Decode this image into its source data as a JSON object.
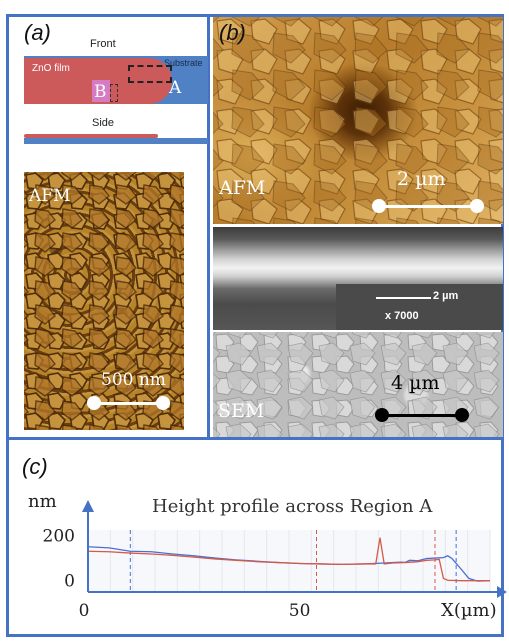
{
  "panel_a": {
    "label": "(a)",
    "schematic": {
      "front_label": "Front",
      "substrate_label": "Substrate",
      "film_label": "ZnO film",
      "region_b_label": "B",
      "region_a_label": "A",
      "side_label": "Side"
    },
    "afm": {
      "title": "AFM",
      "scalebar_label": "500 nm"
    }
  },
  "panel_b": {
    "label": "(b)",
    "afm": {
      "title": "AFM",
      "scalebar_label": "2 µm"
    },
    "sem_cross_section": {
      "scalebar_label": "2 µm",
      "magnification": "x 7000"
    },
    "sem": {
      "title": "SEM",
      "scalebar_label": "4 µm"
    }
  },
  "panel_c": {
    "label": "(c)",
    "chart_data": {
      "type": "line",
      "title": "Height profile across Region A",
      "ylabel": "nm",
      "xlabel": "X(µm)",
      "x_ticks": [
        "0",
        "50"
      ],
      "y_ticks": [
        "200",
        "0"
      ],
      "xlim": [
        0,
        95
      ],
      "ylim": [
        -50,
        330
      ],
      "series": [
        {
          "color": "#4a6fd4",
          "x": [
            0,
            5,
            10,
            15,
            20,
            25,
            30,
            35,
            40,
            45,
            50,
            55,
            60,
            65,
            70,
            72,
            74,
            75,
            76,
            78,
            80,
            82,
            84,
            85,
            86,
            88,
            90,
            92,
            95
          ],
          "y": [
            150,
            145,
            130,
            128,
            118,
            110,
            100,
            92,
            86,
            80,
            76,
            74,
            72,
            74,
            78,
            80,
            82,
            81,
            90,
            88,
            98,
            100,
            102,
            110,
            98,
            55,
            10,
            -2,
            0
          ]
        },
        {
          "color": "#d45a4a",
          "x": [
            0,
            5,
            10,
            15,
            20,
            25,
            30,
            35,
            40,
            45,
            50,
            55,
            60,
            65,
            68,
            69,
            70,
            71,
            72,
            75,
            78,
            80,
            82,
            83,
            84,
            85,
            88,
            90,
            92,
            95
          ],
          "y": [
            130,
            128,
            122,
            118,
            112,
            104,
            96,
            90,
            84,
            80,
            76,
            74,
            72,
            74,
            74,
            190,
            74,
            76,
            78,
            80,
            84,
            90,
            92,
            94,
            10,
            2,
            0,
            0,
            0,
            0
          ]
        }
      ],
      "vertical_markers": [
        {
          "x": 10,
          "color": "#4a6fd4"
        },
        {
          "x": 54,
          "color": "#d45a4a"
        },
        {
          "x": 82,
          "color": "#d45a4a"
        },
        {
          "x": 87,
          "color": "#4a6fd4"
        }
      ]
    }
  }
}
